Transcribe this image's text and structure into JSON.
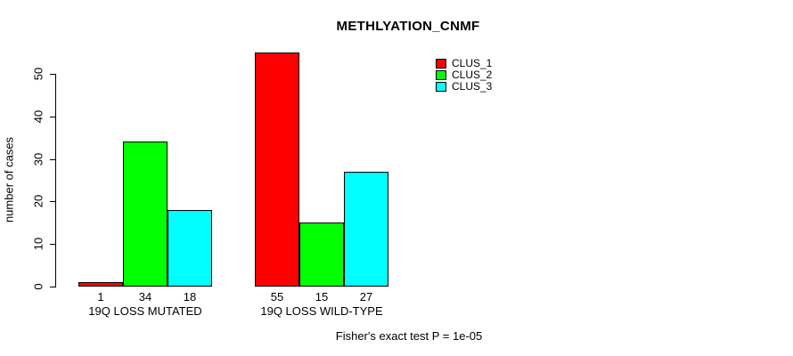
{
  "chart_data": {
    "type": "bar",
    "title": "METHLYATION_CNMF",
    "ylabel": "number of cases",
    "xlabel": "",
    "categories": [
      "19Q LOSS MUTATED",
      "19Q LOSS WILD-TYPE"
    ],
    "series": [
      {
        "name": "CLUS_1",
        "color": "#FF0000",
        "values": [
          1,
          55
        ]
      },
      {
        "name": "CLUS_2",
        "color": "#00FF00",
        "values": [
          34,
          15
        ]
      },
      {
        "name": "CLUS_3",
        "color": "#00FFFF",
        "values": [
          18,
          27
        ]
      }
    ],
    "bar_value_labels": [
      [
        1,
        34,
        18
      ],
      [
        55,
        15,
        27
      ]
    ],
    "yticks": [
      0,
      10,
      20,
      30,
      40,
      50
    ],
    "ylim": [
      0,
      55
    ],
    "grid": false,
    "legend_position": "top-right",
    "annotation": "Fisher's exact test P = 1e-05",
    "bar_border_color": "#000000",
    "axis_color": "#000000",
    "background_color": "#FFFFFF"
  }
}
